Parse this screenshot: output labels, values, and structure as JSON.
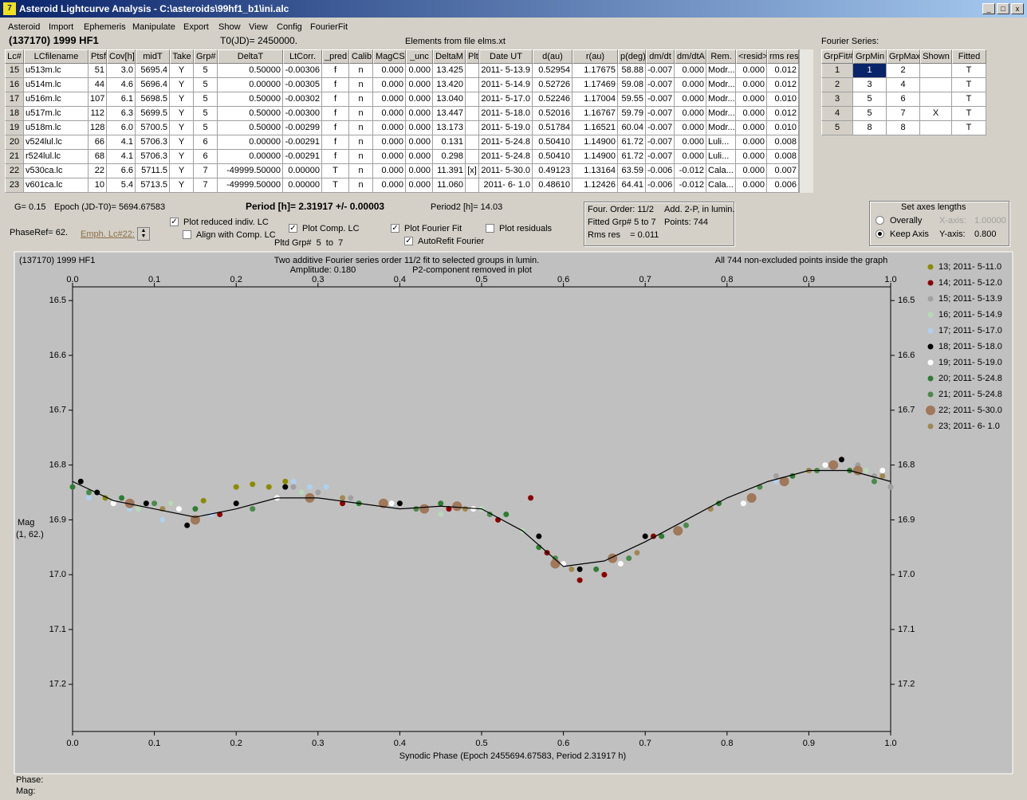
{
  "window": {
    "title": "Asteroid Lightcurve Analysis - C:\\asteroids\\99hf1_b1\\ini.alc"
  },
  "menu": [
    "Asteroid",
    "Import",
    "Ephemeris",
    "Manipulate",
    "Export",
    "Show",
    "View",
    "Config",
    "FourierFit"
  ],
  "header": {
    "object": "(137170) 1999 HF1",
    "t0": "T0(JD)= 2450000.",
    "elements": "Elements from file elms.xt"
  },
  "lc_table": {
    "columns": [
      "Lc#",
      "LCfilename",
      "Ptsf",
      "Cov[h]",
      "midT",
      "Take",
      "Grp#",
      "DeltaT",
      "LtCorr.",
      "_pred",
      "Calib.",
      "MagCS",
      "_unc",
      "DeltaM",
      "Plt",
      "Date UT",
      "d(au)",
      "r(au)",
      "p(deg)",
      "dm/dt",
      "dm/dtA",
      "Rem.",
      "<resid>",
      "rms res"
    ],
    "rows": [
      [
        "15",
        "u513m.lc",
        "51",
        "3.0",
        "5695.4",
        "Y",
        "5",
        "0.50000",
        "-0.00306",
        "f",
        "n",
        "0.000",
        "0.000",
        "13.425",
        null,
        "2011- 5-13.9",
        "0.52954",
        "1.17675",
        "58.88",
        "-0.007",
        "0.000",
        "Modr...",
        "0.000",
        "0.012"
      ],
      [
        "16",
        "u514m.lc",
        "44",
        "4.6",
        "5696.4",
        "Y",
        "5",
        "0.00000",
        "-0.00305",
        "f",
        "n",
        "0.000",
        "0.000",
        "13.420",
        null,
        "2011- 5-14.9",
        "0.52726",
        "1.17469",
        "59.08",
        "-0.007",
        "0.000",
        "Modr...",
        "0.000",
        "0.012"
      ],
      [
        "17",
        "u516m.lc",
        "107",
        "6.1",
        "5698.5",
        "Y",
        "5",
        "0.50000",
        "-0.00302",
        "f",
        "n",
        "0.000",
        "0.000",
        "13.040",
        null,
        "2011- 5-17.0",
        "0.52246",
        "1.17004",
        "59.55",
        "-0.007",
        "0.000",
        "Modr...",
        "0.000",
        "0.010"
      ],
      [
        "18",
        "u517m.lc",
        "112",
        "6.3",
        "5699.5",
        "Y",
        "5",
        "0.50000",
        "-0.00300",
        "f",
        "n",
        "0.000",
        "0.000",
        "13.447",
        null,
        "2011- 5-18.0",
        "0.52016",
        "1.16767",
        "59.79",
        "-0.007",
        "0.000",
        "Modr...",
        "0.000",
        "0.012"
      ],
      [
        "19",
        "u518m.lc",
        "128",
        "6.0",
        "5700.5",
        "Y",
        "5",
        "0.50000",
        "-0.00299",
        "f",
        "n",
        "0.000",
        "0.000",
        "13.173",
        null,
        "2011- 5-19.0",
        "0.51784",
        "1.16521",
        "60.04",
        "-0.007",
        "0.000",
        "Modr...",
        "0.000",
        "0.010"
      ],
      [
        "20",
        "v524lul.lc",
        "66",
        "4.1",
        "5706.3",
        "Y",
        "6",
        "0.00000",
        "-0.00291",
        "f",
        "n",
        "0.000",
        "0.000",
        "0.131",
        null,
        "2011- 5-24.8",
        "0.50410",
        "1.14900",
        "61.72",
        "-0.007",
        "0.000",
        "Luli...",
        "0.000",
        "0.008"
      ],
      [
        "21",
        "r524lul.lc",
        "68",
        "4.1",
        "5706.3",
        "Y",
        "6",
        "0.00000",
        "-0.00291",
        "f",
        "n",
        "0.000",
        "0.000",
        "0.298",
        null,
        "2011- 5-24.8",
        "0.50410",
        "1.14900",
        "61.72",
        "-0.007",
        "0.000",
        "Luli...",
        "0.000",
        "0.008"
      ],
      [
        "22",
        "v530ca.lc",
        "22",
        "6.6",
        "5711.5",
        "Y",
        "7",
        "-49999.50000",
        "0.00000",
        "T",
        "n",
        "0.000",
        "0.000",
        "11.391",
        "[x]",
        "2011- 5-30.0",
        "0.49123",
        "1.13164",
        "63.59",
        "-0.006",
        "-0.012",
        "Cala...",
        "0.000",
        "0.007"
      ],
      [
        "23",
        "v601ca.lc",
        "10",
        "5.4",
        "5713.5",
        "Y",
        "7",
        "-49999.50000",
        "0.00000",
        "T",
        "n",
        "0.000",
        "0.000",
        "11.060",
        null,
        "2011- 6- 1.0",
        "0.48610",
        "1.12426",
        "64.41",
        "-0.006",
        "-0.012",
        "Cala...",
        "0.000",
        "0.006"
      ]
    ]
  },
  "fourier_series": {
    "label": "Fourier Series:",
    "columns": [
      "GrpFit#",
      "GrpMin",
      "GrpMax",
      "Shown",
      "Fitted"
    ],
    "rows": [
      [
        "1",
        "1",
        "2",
        null,
        "T"
      ],
      [
        "2",
        "3",
        "4",
        null,
        "T"
      ],
      [
        "3",
        "5",
        "6",
        null,
        "T"
      ],
      [
        "4",
        "5",
        "7",
        "X",
        "T"
      ],
      [
        "5",
        "8",
        "8",
        null,
        "T"
      ]
    ]
  },
  "controls": {
    "g": "G= 0.15",
    "epoch": "Epoch (JD-T0)= 5694.67583",
    "period": "Period [h]= 2.31917 +/- 0.00003",
    "period2": "Period2 [h]= 14.03",
    "phaseref": "PhaseRef= 62.",
    "emph": "Emph. Lc#22:",
    "pltd_grp": "Pltd Grp#  5  to  7",
    "checkboxes": [
      {
        "label": "Plot reduced indiv. LC",
        "checked": true
      },
      {
        "label": "Align with Comp. LC",
        "checked": false
      },
      {
        "label": "Plot Comp. LC",
        "checked": true
      },
      {
        "label": "Plot Fourier Fit",
        "checked": true
      },
      {
        "label": "AutoRefit Fourier",
        "checked": true
      },
      {
        "label": "Plot residuals",
        "checked": false
      }
    ]
  },
  "fit_info": [
    "Four. Order: 11/2",
    "Add. 2-P, in lumin.",
    "Fitted Grp# 5 to 7",
    "Points: 744",
    "Rms res    = 0.011"
  ],
  "axes_box": {
    "title": "Set axes lengths",
    "radios": [
      {
        "label": "Overally",
        "selected": false
      },
      {
        "label": "Keep Axis",
        "selected": true
      }
    ],
    "x_label": "X-axis:",
    "x_value": "1.00000",
    "y_label": "Y-axis:",
    "y_value": "0.800"
  },
  "chart_data": {
    "type": "scatter",
    "object": "(137170) 1999 HF1",
    "title": "Two additive Fourier series order 11/2 fit to selected groups in lumin.",
    "subtitle_left": "Amplitude: 0.180",
    "subtitle_right": "P2-component removed in plot",
    "note": "All 744 non-excluded points inside the graph",
    "y_label": "Mag",
    "y_label2": "(1, 62.)",
    "x_label": "Synodic Phase (Epoch 2455694.67583, Period 2.31917 h)",
    "xlim": [
      0,
      1
    ],
    "ylim": [
      16.475,
      17.286
    ],
    "y_inverted": true,
    "xticks": [
      {
        "value": 0,
        "label": "0.0"
      },
      0.1,
      0.2,
      0.3,
      0.4,
      0.5,
      0.6,
      0.7,
      0.8,
      0.9,
      {
        "value": 1,
        "label": "1.0"
      }
    ],
    "yticks": [
      16.5,
      16.6,
      16.7,
      16.8,
      16.9,
      {
        "value": 17,
        "label": "17.0"
      },
      17.1,
      17.2
    ],
    "fit_curve": {
      "color": "#000000",
      "x": [
        0,
        0.05,
        0.1,
        0.15,
        0.2,
        0.25,
        0.3,
        0.35,
        0.4,
        0.45,
        0.5,
        0.55,
        0.6,
        0.65,
        0.7,
        0.75,
        0.8,
        0.85,
        0.9,
        0.95,
        1
      ],
      "values": [
        16.83,
        16.865,
        16.88,
        16.895,
        16.88,
        16.86,
        16.86,
        16.87,
        16.88,
        16.875,
        16.88,
        16.92,
        16.985,
        16.975,
        16.94,
        16.9,
        16.86,
        16.83,
        16.81,
        16.81,
        16.83
      ]
    },
    "series": [
      {
        "name": "13; 2011- 5-11.0",
        "color": "#8b8b00",
        "x": [
          0.04,
          0.12,
          0.16,
          0.2,
          0.22,
          0.24,
          0.26,
          0.9
        ],
        "values": [
          16.86,
          16.87,
          16.865,
          16.84,
          16.835,
          16.84,
          16.83,
          16.81
        ]
      },
      {
        "name": "14; 2011- 5-12.0",
        "color": "#8b0000",
        "x": [
          0.18,
          0.33,
          0.46,
          0.52,
          0.56,
          0.58,
          0.62,
          0.65,
          0.71
        ],
        "values": [
          16.89,
          16.87,
          16.88,
          16.9,
          16.86,
          16.96,
          17.01,
          17.0,
          16.93
        ]
      },
      {
        "name": "15; 2011- 5-13.9",
        "color": "#a0a0a0",
        "x": [
          0.27,
          0.3,
          0.34,
          0.38,
          0.86,
          0.93,
          0.96,
          0.98,
          1.0
        ],
        "values": [
          16.84,
          16.85,
          16.86,
          16.87,
          16.82,
          16.8,
          16.8,
          16.82,
          16.84
        ]
      },
      {
        "name": "16; 2011- 5-14.9",
        "color": "#b8d8b8",
        "x": [
          0.08,
          0.12,
          0.28,
          0.35,
          0.45,
          0.5,
          0.55,
          0.97
        ],
        "values": [
          16.88,
          16.87,
          16.85,
          16.87,
          16.89,
          16.88,
          16.92,
          16.81
        ]
      },
      {
        "name": "17; 2011- 5-17.0",
        "color": "#b0d0f0",
        "x": [
          0.02,
          0.07,
          0.11,
          0.17,
          0.27,
          0.29,
          0.31,
          0.86
        ],
        "values": [
          16.86,
          16.88,
          16.9,
          16.89,
          16.83,
          16.84,
          16.84,
          16.83
        ]
      },
      {
        "name": "18; 2011- 5-18.0",
        "color": "#000000",
        "x": [
          0.01,
          0.03,
          0.09,
          0.14,
          0.2,
          0.26,
          0.4,
          0.57,
          0.62,
          0.7,
          0.94
        ],
        "values": [
          16.83,
          16.85,
          16.87,
          16.91,
          16.87,
          16.84,
          16.87,
          16.93,
          16.99,
          16.93,
          16.79
        ]
      },
      {
        "name": "19; 2011- 5-19.0",
        "color": "#ffffff",
        "x": [
          0.05,
          0.13,
          0.25,
          0.39,
          0.49,
          0.6,
          0.67,
          0.82,
          0.92,
          0.99
        ],
        "values": [
          16.87,
          16.88,
          16.86,
          16.87,
          16.88,
          16.98,
          16.98,
          16.87,
          16.8,
          16.81
        ]
      },
      {
        "name": "20; 2011- 5-24.8",
        "color": "#2e7d32",
        "x": [
          0.0,
          0.06,
          0.15,
          0.35,
          0.45,
          0.53,
          0.57,
          0.64,
          0.72,
          0.79,
          0.88,
          0.95
        ],
        "values": [
          16.84,
          16.86,
          16.88,
          16.87,
          16.87,
          16.89,
          16.95,
          16.99,
          16.93,
          16.87,
          16.82,
          16.81
        ]
      },
      {
        "name": "21; 2011- 5-24.8",
        "color": "#4a8a4a",
        "x": [
          0.02,
          0.1,
          0.22,
          0.42,
          0.51,
          0.59,
          0.68,
          0.75,
          0.84,
          0.91,
          0.98
        ],
        "values": [
          16.85,
          16.87,
          16.88,
          16.88,
          16.89,
          16.97,
          16.97,
          16.91,
          16.84,
          16.81,
          16.83
        ]
      },
      {
        "name": "22; 2011- 5-30.0",
        "color": "#a0785a",
        "size": "large",
        "x": [
          0.07,
          0.15,
          0.29,
          0.38,
          0.43,
          0.47,
          0.59,
          0.66,
          0.74,
          0.83,
          0.87,
          0.93,
          0.96
        ],
        "values": [
          16.87,
          16.9,
          16.86,
          16.87,
          16.88,
          16.875,
          16.98,
          16.97,
          16.92,
          16.86,
          16.83,
          16.8,
          16.81
        ]
      },
      {
        "name": "23; 2011- 6- 1.0",
        "color": "#a08850",
        "x": [
          0.11,
          0.33,
          0.48,
          0.61,
          0.69,
          0.78,
          0.9,
          0.99
        ],
        "values": [
          16.88,
          16.86,
          16.88,
          16.99,
          16.96,
          16.88,
          16.81,
          16.82
        ]
      }
    ]
  },
  "status": {
    "phase": "Phase:",
    "mag": "Mag:"
  }
}
